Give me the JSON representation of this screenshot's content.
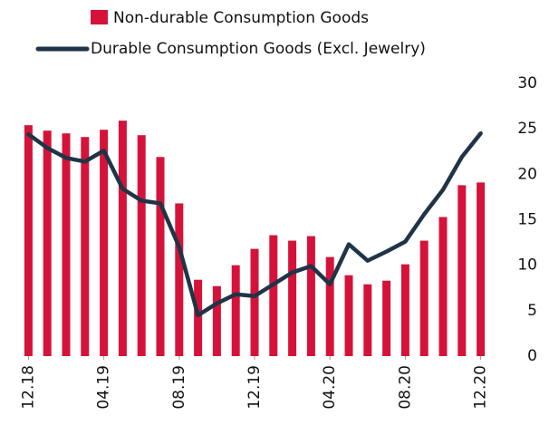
{
  "chart_data": {
    "type": "combo",
    "categories": [
      "12.18",
      null,
      null,
      null,
      "04.19",
      null,
      null,
      null,
      "08.19",
      null,
      null,
      null,
      "12.19",
      null,
      null,
      null,
      "04.20",
      null,
      null,
      null,
      "08.20",
      null,
      null,
      null,
      "12.20"
    ],
    "series": [
      {
        "name": "Non-durable Consumption Goods",
        "type": "bar",
        "color": "#d5133a",
        "values": [
          25.4,
          24.8,
          24.5,
          24.1,
          24.9,
          25.9,
          24.3,
          21.9,
          16.8,
          8.4,
          7.7,
          10.0,
          11.8,
          13.3,
          12.7,
          13.2,
          10.9,
          8.9,
          7.9,
          8.3,
          10.1,
          12.7,
          15.3,
          18.8,
          19.1
        ]
      },
      {
        "name": "Durable Consumption Goods (Excl. Jewelry)",
        "type": "line",
        "color": "#1f3447",
        "values": [
          24.4,
          22.9,
          21.8,
          21.4,
          22.6,
          18.4,
          17.1,
          16.8,
          12.0,
          4.5,
          5.8,
          6.8,
          6.6,
          7.9,
          9.2,
          9.9,
          7.9,
          12.3,
          10.5,
          11.5,
          12.6,
          15.6,
          18.3,
          21.9,
          24.5
        ]
      }
    ],
    "ylim": [
      0,
      30
    ],
    "yticks": [
      0,
      5,
      10,
      15,
      20,
      25,
      30
    ]
  }
}
